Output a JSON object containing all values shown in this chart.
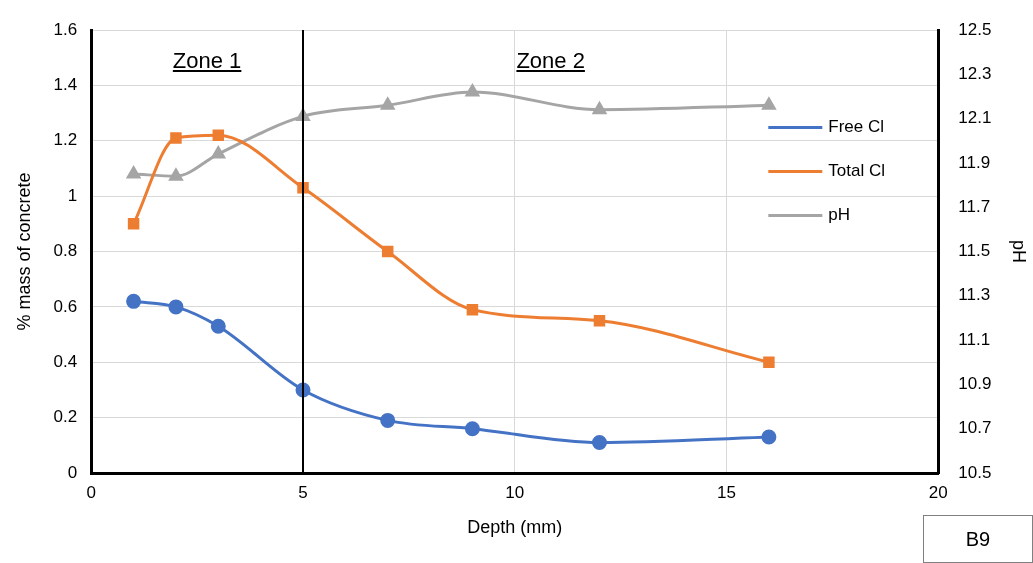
{
  "chart_data": {
    "type": "line",
    "xlabel": "Depth (mm)",
    "ylabel": "% mass of concrete",
    "y2label": "pH",
    "x": [
      1,
      2,
      3,
      5,
      7,
      9,
      12,
      16
    ],
    "series": [
      {
        "name": "Free Cl",
        "color": "#4472c4",
        "marker": "circle",
        "values": [
          0.62,
          0.6,
          0.53,
          0.3,
          0.19,
          0.16,
          0.11,
          0.13
        ]
      },
      {
        "name": "Total Cl",
        "color": "#ed7d31",
        "marker": "square",
        "values": [
          0.9,
          1.21,
          1.22,
          1.03,
          0.8,
          0.59,
          0.55,
          0.4
        ]
      },
      {
        "name": "pH",
        "color": "#a5a5a5",
        "marker": "triangle",
        "axis": "y2",
        "values": [
          11.85,
          11.84,
          11.94,
          12.11,
          12.16,
          12.22,
          12.14,
          12.16
        ]
      }
    ],
    "xlim": [
      0,
      20
    ],
    "xticks": [
      0,
      5,
      10,
      15,
      20
    ],
    "ylim": [
      0,
      1.6
    ],
    "yticks": [
      0,
      0.2,
      0.4,
      0.6,
      0.8,
      1,
      1.2,
      1.4,
      1.6
    ],
    "y2lim": [
      10.5,
      12.5
    ],
    "y2ticks": [
      10.5,
      10.7,
      10.9,
      11.1,
      11.3,
      11.5,
      11.7,
      11.9,
      12.1,
      12.3,
      12.5
    ],
    "ref_lines": [
      {
        "axis": "x",
        "value": 5,
        "color": "#000000"
      }
    ],
    "annotations": [
      "Zone 1",
      "Zone 2",
      "B9"
    ],
    "grid": true,
    "legend": "right",
    "line_style": "solid"
  }
}
